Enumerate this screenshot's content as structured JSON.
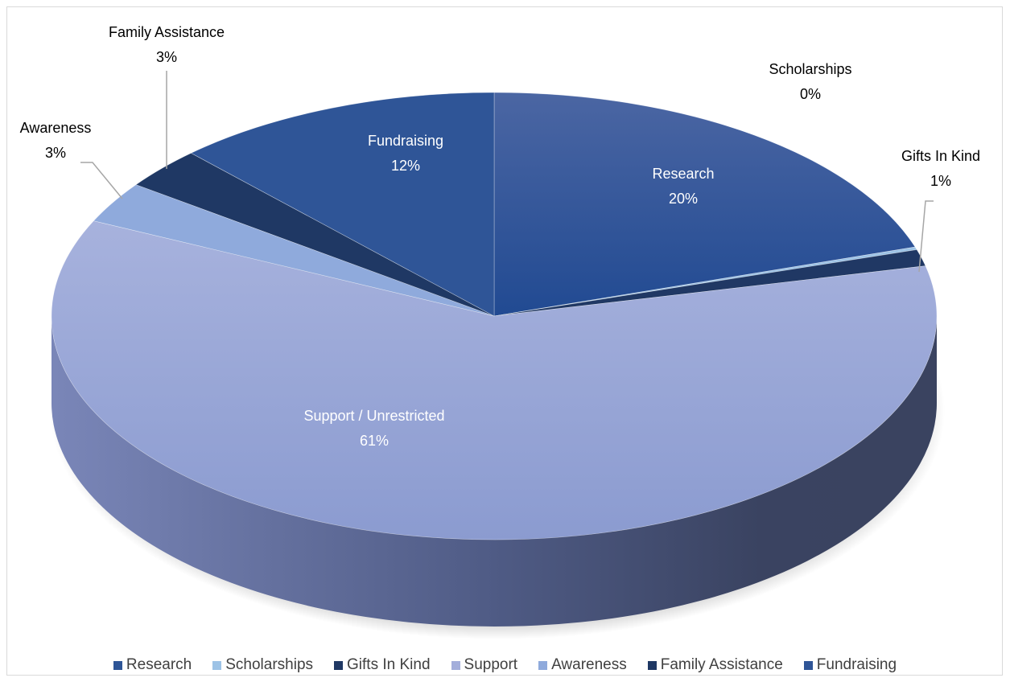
{
  "chart_data": {
    "type": "pie",
    "style": "3d",
    "slices": [
      {
        "name": "Research",
        "label": "Research",
        "value": 20,
        "pct_label": "20%",
        "color": "#2E5597"
      },
      {
        "name": "Scholarships",
        "label": "Scholarships",
        "value": 0.2,
        "pct_label": "0%",
        "color": "#9DC3E6"
      },
      {
        "name": "Gifts In Kind",
        "label": "Gifts In Kind",
        "value": 1.2,
        "pct_label": "1%",
        "color": "#203864"
      },
      {
        "name": "Support",
        "label": "Support / Unrestricted",
        "value": 60.6,
        "pct_label": "61%",
        "color": "#A3AEDB"
      },
      {
        "name": "Awareness",
        "label": "Awareness",
        "value": 3,
        "pct_label": "3%",
        "color": "#8FAADC"
      },
      {
        "name": "Family Assistance",
        "label": "Family Assistance",
        "value": 3,
        "pct_label": "3%",
        "color": "#1F3864"
      },
      {
        "name": "Fundraising",
        "label": "Fundraising",
        "value": 12,
        "pct_label": "12%",
        "color": "#2F5597"
      }
    ],
    "legend_position": "bottom",
    "title": ""
  }
}
